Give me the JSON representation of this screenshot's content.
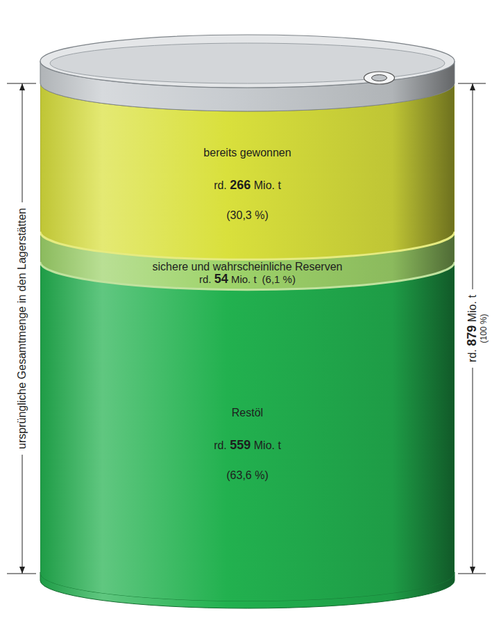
{
  "chart_data": {
    "type": "bar",
    "stacked": true,
    "tick_labels": false,
    "y_label": "ursprüngliche Gesamtmenge in den Lagerstätten",
    "ylim": [
      0,
      879
    ],
    "total": 879,
    "total_label": "rd. 879 Mio. t",
    "total_share": 100,
    "total_share_label": "(100 %)",
    "series": [
      {
        "name": "Restöl",
        "color": "#22b14f",
        "values": [
          559
        ],
        "value_labels": [
          "rd. 559 Mio. t"
        ],
        "share": 63.6,
        "share_label": "(63,6 %)"
      },
      {
        "name": "sichere und wahrscheinliche Reserven",
        "color": "#9ed36a",
        "values": [
          54
        ],
        "value_labels": [
          "rd. 54 Mio. t"
        ],
        "share": 6.1,
        "share_label": "(6,1 %)"
      },
      {
        "name": "bereits gewonnen",
        "color": "#d9e03c",
        "values": [
          266
        ],
        "value_labels": [
          "rd. 266 Mio. t"
        ],
        "share": 30.3,
        "share_label": "(30,3 %)"
      }
    ]
  }
}
